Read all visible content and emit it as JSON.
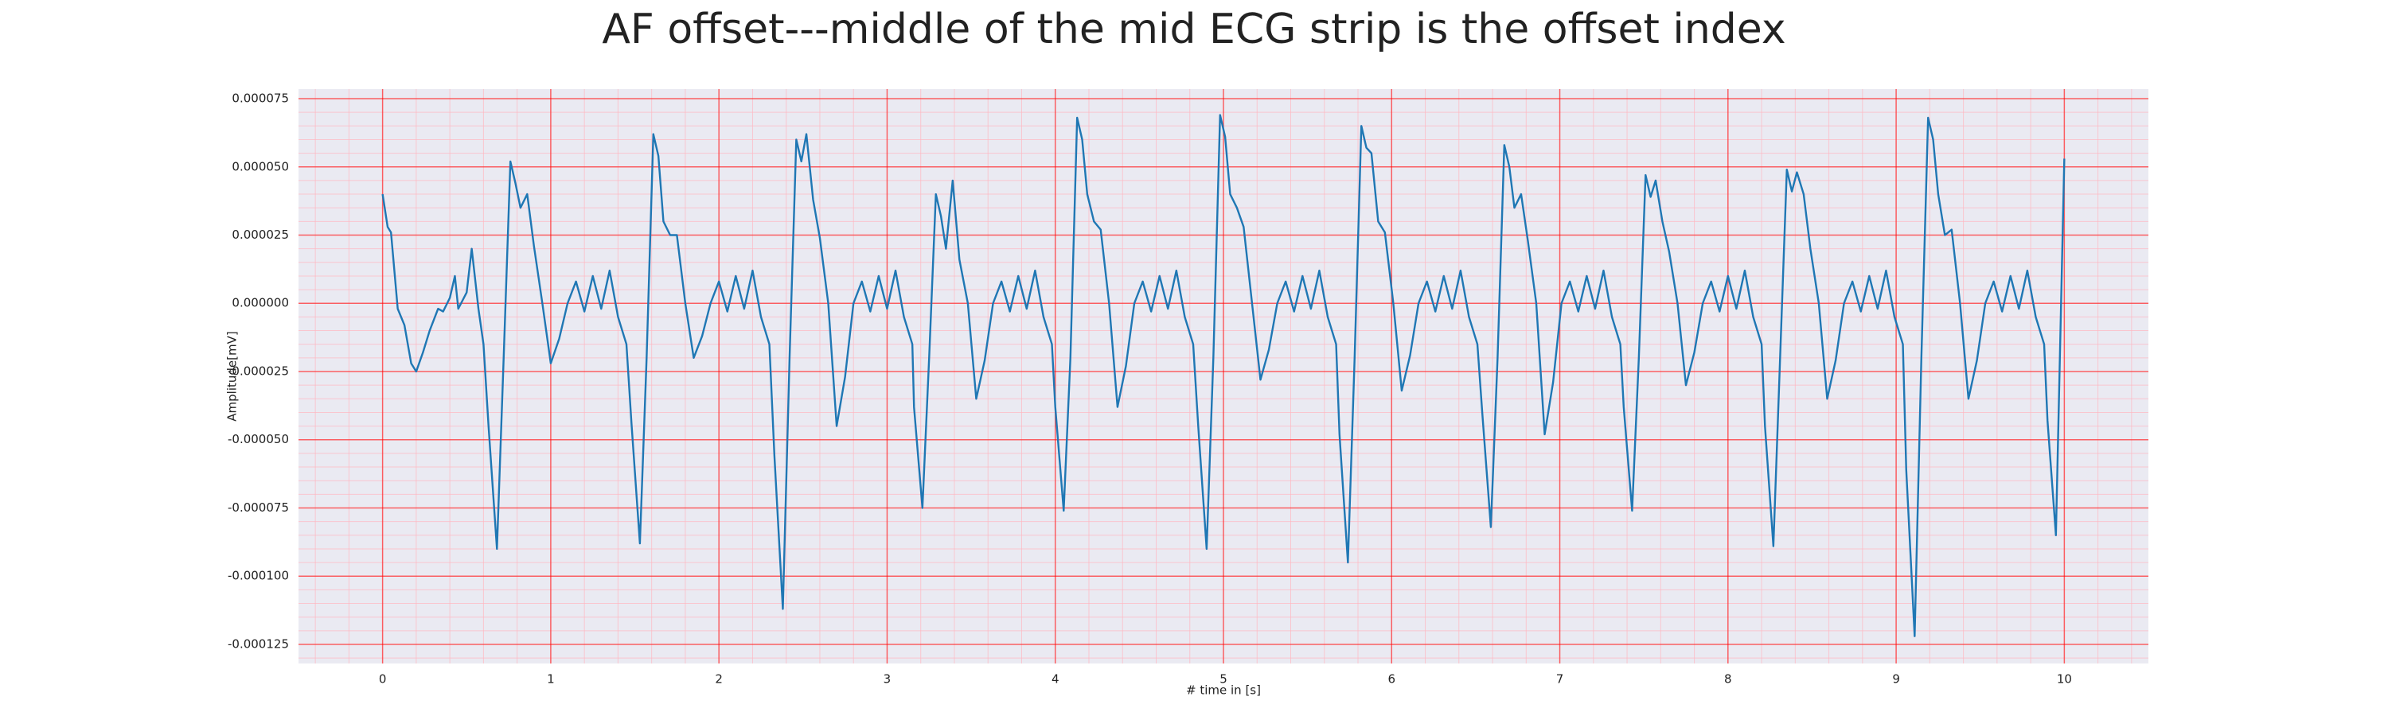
{
  "chart_data": {
    "type": "line",
    "title": "AF offset---middle of the mid ECG strip is the offset index",
    "xlabel": "# time in [s]",
    "ylabel": "Amplitude[mV]",
    "xlim": [
      -0.5,
      10.5
    ],
    "xticks": [
      0,
      1,
      2,
      3,
      4,
      5,
      6,
      7,
      8,
      9,
      10
    ],
    "ylim": [
      -0.000132,
      7.85e-05
    ],
    "yticks": [
      {
        "value": 7.5e-05,
        "label": "0.000075"
      },
      {
        "value": 5e-05,
        "label": "0.000050"
      },
      {
        "value": 2.5e-05,
        "label": "0.000025"
      },
      {
        "value": 0,
        "label": "0.000000"
      },
      {
        "value": -2.5e-05,
        "label": "-0.000025"
      },
      {
        "value": -5e-05,
        "label": "-0.000050"
      },
      {
        "value": -7.5e-05,
        "label": "-0.000075"
      },
      {
        "value": -0.0001,
        "label": "-0.000100"
      },
      {
        "value": -0.000125,
        "label": "-0.000125"
      }
    ],
    "grid": true,
    "color": "#1f77b4",
    "x": [
      0,
      0.03,
      0.05,
      0.09,
      0.13,
      0.17,
      0.2,
      0.24,
      0.28,
      0.33,
      0.36,
      0.4,
      0.43,
      0.45,
      0.5,
      0.53,
      0.57,
      0.6,
      0.63,
      0.68,
      0.72,
      0.76,
      0.79,
      0.82,
      0.86,
      0.9,
      0.95,
      1.0,
      1.05,
      1.1,
      1.15,
      1.2,
      1.25,
      1.3,
      1.35,
      1.4,
      1.45,
      1.48,
      1.53,
      1.57,
      1.61,
      1.64,
      1.67,
      1.71,
      1.75,
      1.8,
      1.85,
      1.9,
      1.95,
      2.0,
      2.05,
      2.1,
      2.15,
      2.2,
      2.25,
      2.3,
      2.33,
      2.38,
      2.42,
      2.46,
      2.49,
      2.52,
      2.56,
      2.6,
      2.65,
      2.7,
      2.75,
      2.8,
      2.85,
      2.9,
      2.95,
      3.0,
      3.05,
      3.1,
      3.15,
      3.16,
      3.21,
      3.25,
      3.29,
      3.32,
      3.35,
      3.39,
      3.43,
      3.48,
      3.53,
      3.58,
      3.63,
      3.68,
      3.73,
      3.78,
      3.83,
      3.88,
      3.93,
      3.98,
      4.0,
      4.05,
      4.09,
      4.13,
      4.16,
      4.19,
      4.23,
      4.27,
      4.32,
      4.37,
      4.42,
      4.47,
      4.52,
      4.57,
      4.62,
      4.67,
      4.72,
      4.77,
      4.82,
      4.85,
      4.9,
      4.94,
      4.98,
      5.01,
      5.04,
      5.08,
      5.12,
      5.17,
      5.22,
      5.27,
      5.32,
      5.37,
      5.42,
      5.47,
      5.52,
      5.57,
      5.62,
      5.67,
      5.69,
      5.74,
      5.78,
      5.82,
      5.85,
      5.88,
      5.92,
      5.96,
      6.01,
      6.06,
      6.11,
      6.16,
      6.21,
      6.26,
      6.31,
      6.36,
      6.41,
      6.46,
      6.51,
      6.54,
      6.59,
      6.63,
      6.67,
      6.7,
      6.73,
      6.77,
      6.81,
      6.86,
      6.91,
      6.96,
      7.01,
      7.06,
      7.11,
      7.16,
      7.21,
      7.26,
      7.31,
      7.36,
      7.38,
      7.43,
      7.47,
      7.51,
      7.54,
      7.57,
      7.61,
      7.65,
      7.7,
      7.75,
      7.8,
      7.85,
      7.9,
      7.95,
      8.0,
      8.05,
      8.1,
      8.15,
      8.2,
      8.22,
      8.27,
      8.31,
      8.35,
      8.38,
      8.41,
      8.45,
      8.49,
      8.54,
      8.59,
      8.64,
      8.69,
      8.74,
      8.79,
      8.84,
      8.89,
      8.94,
      8.99,
      9.04,
      9.06,
      9.11,
      9.15,
      9.19,
      9.22,
      9.25,
      9.29,
      9.33,
      9.38,
      9.43,
      9.48,
      9.53,
      9.58,
      9.63,
      9.68,
      9.73,
      9.78,
      9.83,
      9.88,
      9.9,
      9.95,
      10.0
    ],
    "values": [
      4e-05,
      2.8e-05,
      2.6e-05,
      -2e-06,
      -8e-06,
      -2.2e-05,
      -2.5e-05,
      -1.8e-05,
      -1e-05,
      -2e-06,
      -3e-06,
      2e-06,
      1e-05,
      -2e-06,
      4e-06,
      2e-05,
      -2e-06,
      -1.5e-05,
      -4.5e-05,
      -9e-05,
      -2e-05,
      5.2e-05,
      4.4e-05,
      3.5e-05,
      4e-05,
      2.1e-05,
      0,
      -2.2e-05,
      -1.3e-05,
      0,
      8e-06,
      -3e-06,
      1e-05,
      -2e-06,
      1.2e-05,
      -5e-06,
      -1.5e-05,
      -4.4e-05,
      -8.8e-05,
      -2e-05,
      6.2e-05,
      5.4e-05,
      3e-05,
      2.5e-05,
      2.5e-05,
      0,
      -2e-05,
      -1.2e-05,
      0,
      8e-06,
      -3e-06,
      1e-05,
      -2e-06,
      1.2e-05,
      -5e-06,
      -1.5e-05,
      -5.6e-05,
      -0.000112,
      -2e-05,
      6e-05,
      5.2e-05,
      6.2e-05,
      3.8e-05,
      2.4e-05,
      0,
      -4.5e-05,
      -2.7e-05,
      0,
      8e-06,
      -3e-06,
      1e-05,
      -2e-06,
      1.2e-05,
      -5e-06,
      -1.5e-05,
      -3.8e-05,
      -7.5e-05,
      -2e-05,
      4e-05,
      3.2e-05,
      2e-05,
      4.5e-05,
      1.6e-05,
      0,
      -3.5e-05,
      -2.1e-05,
      0,
      8e-06,
      -3e-06,
      1e-05,
      -2e-06,
      1.2e-05,
      -5e-06,
      -1.5e-05,
      -3.8e-05,
      -7.6e-05,
      -2e-05,
      6.8e-05,
      6e-05,
      4e-05,
      3e-05,
      2.7e-05,
      0,
      -3.8e-05,
      -2.3e-05,
      0,
      8e-06,
      -3e-06,
      1e-05,
      -2e-06,
      1.2e-05,
      -5e-06,
      -1.5e-05,
      -4.5e-05,
      -9e-05,
      -2e-05,
      6.9e-05,
      6.1e-05,
      4e-05,
      3.5e-05,
      2.8e-05,
      0,
      -2.8e-05,
      -1.7e-05,
      0,
      8e-06,
      -3e-06,
      1e-05,
      -2e-06,
      1.2e-05,
      -5e-06,
      -1.5e-05,
      -4.8e-05,
      -9.5e-05,
      -2e-05,
      6.5e-05,
      5.7e-05,
      5.5e-05,
      3e-05,
      2.6e-05,
      0,
      -3.2e-05,
      -1.9e-05,
      0,
      8e-06,
      -3e-06,
      1e-05,
      -2e-06,
      1.2e-05,
      -5e-06,
      -1.5e-05,
      -4.1e-05,
      -8.2e-05,
      -2e-05,
      5.8e-05,
      5e-05,
      3.5e-05,
      4e-05,
      2.3e-05,
      0,
      -4.8e-05,
      -2.9e-05,
      0,
      8e-06,
      -3e-06,
      1e-05,
      -2e-06,
      1.2e-05,
      -5e-06,
      -1.5e-05,
      -3.8e-05,
      -7.6e-05,
      -2e-05,
      4.7e-05,
      3.9e-05,
      4.5e-05,
      3e-05,
      1.9e-05,
      0,
      -3e-05,
      -1.8e-05,
      0,
      8e-06,
      -3e-06,
      1e-05,
      -2e-06,
      1.2e-05,
      -5e-06,
      -1.5e-05,
      -4.5e-05,
      -8.9e-05,
      -2e-05,
      4.9e-05,
      4.1e-05,
      4.8e-05,
      4e-05,
      2e-05,
      0,
      -3.5e-05,
      -2.1e-05,
      0,
      8e-06,
      -3e-06,
      1e-05,
      -2e-06,
      1.2e-05,
      -5e-06,
      -1.5e-05,
      -6.1e-05,
      -0.000122,
      -2e-05,
      6.8e-05,
      6e-05,
      4e-05,
      2.5e-05,
      2.7e-05,
      0,
      -3.5e-05,
      -2.1e-05,
      0,
      8e-06,
      -3e-06,
      1e-05,
      -2e-06,
      1.2e-05,
      -5e-06,
      -1.5e-05,
      -4.3e-05,
      -8.5e-05,
      5.3e-05
    ]
  }
}
